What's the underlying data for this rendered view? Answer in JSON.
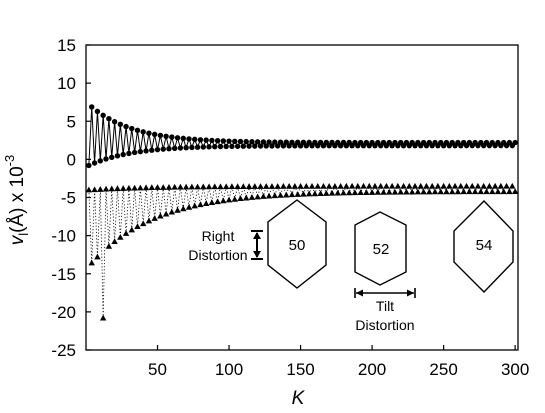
{
  "chart_data": {
    "type": "scatter",
    "xlabel": "K",
    "ylabel_parts": {
      "symbol": "v",
      "subscript": "l",
      "unit": "(Å) x 10",
      "exponent": "-3"
    },
    "xlim": [
      0,
      302
    ],
    "ylim": [
      -25,
      15
    ],
    "xticks": [
      50,
      100,
      150,
      200,
      250,
      300
    ],
    "yticks": [
      15,
      10,
      5,
      0,
      -5,
      -10,
      -15,
      -20,
      -25
    ],
    "grid": false,
    "series": [
      {
        "marker": "circle",
        "connected": true,
        "line_style": "solid",
        "model": {
          "x_start": 2,
          "x_end": 300,
          "x_step": 2,
          "center_start": 3.2,
          "center_end": 2.0,
          "amplitude_start": 4.0,
          "amplitude_end": 0.2,
          "decay": 30
        }
      },
      {
        "marker": "triangle",
        "connected": true,
        "line_style": "dotted",
        "model": {
          "x_start": 2,
          "x_end": 300,
          "x_step": 2,
          "upper_start": -4.0,
          "upper_end": -3.5,
          "lower_start": -14.0,
          "lower_end": -4.2,
          "decay": 45,
          "min_point": {
            "x": 12,
            "y": -20.8
          }
        }
      }
    ],
    "annotations": {
      "right_distortion": [
        "Right",
        "Distortion"
      ],
      "tilt_distortion": [
        "Tilt",
        "Distortion"
      ],
      "hexagons": [
        "50",
        "52",
        "54"
      ]
    },
    "colors": {
      "axes": "#000000",
      "markers": "#000000",
      "background": "#ffffff"
    }
  }
}
